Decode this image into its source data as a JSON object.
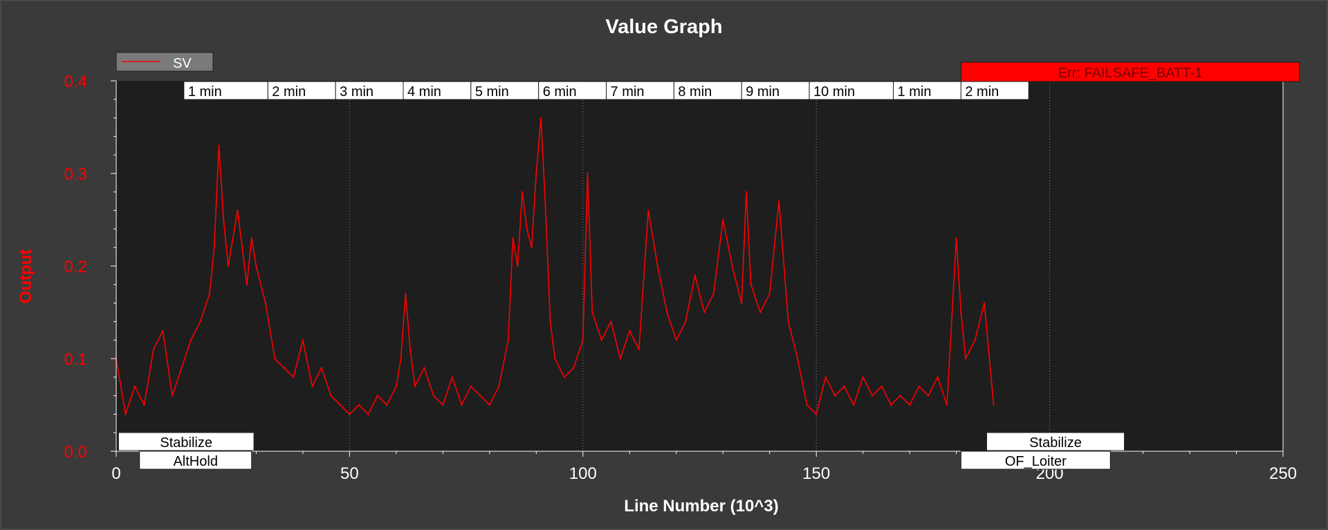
{
  "chart_data": {
    "type": "line",
    "title": "Value Graph",
    "xlabel": "Line Number (10^3)",
    "ylabel": "Output",
    "xlim": [
      0,
      250
    ],
    "ylim": [
      0,
      0.4
    ],
    "x_ticks": [
      "0",
      "50",
      "100",
      "150",
      "200",
      "250"
    ],
    "y_ticks": [
      "0.0",
      "0.1",
      "0.2",
      "0.3",
      "0.4"
    ],
    "legend": {
      "position": "top-left",
      "entries": [
        "SV"
      ]
    },
    "grid": false,
    "series": [
      {
        "name": "SV",
        "color": "#ff0000",
        "x": [
          0,
          2,
          4,
          6,
          8,
          10,
          12,
          14,
          16,
          18,
          20,
          21,
          22,
          23,
          24,
          26,
          28,
          29,
          30,
          32,
          34,
          36,
          38,
          40,
          42,
          44,
          46,
          48,
          50,
          52,
          54,
          56,
          58,
          60,
          61,
          62,
          63,
          64,
          66,
          68,
          70,
          72,
          74,
          76,
          78,
          80,
          82,
          84,
          85,
          86,
          87,
          88,
          89,
          90,
          91,
          92,
          93,
          94,
          96,
          98,
          100,
          101,
          102,
          104,
          106,
          108,
          110,
          112,
          114,
          116,
          118,
          120,
          122,
          124,
          126,
          128,
          130,
          132,
          134,
          135,
          136,
          138,
          140,
          142,
          144,
          146,
          148,
          150,
          152,
          154,
          156,
          158,
          160,
          162,
          164,
          166,
          168,
          170,
          172,
          174,
          176,
          178,
          180,
          181,
          182,
          184,
          186,
          188
        ],
        "y": [
          0.1,
          0.04,
          0.07,
          0.05,
          0.11,
          0.13,
          0.06,
          0.09,
          0.12,
          0.14,
          0.17,
          0.22,
          0.33,
          0.25,
          0.2,
          0.26,
          0.18,
          0.23,
          0.2,
          0.16,
          0.1,
          0.09,
          0.08,
          0.12,
          0.07,
          0.09,
          0.06,
          0.05,
          0.04,
          0.05,
          0.04,
          0.06,
          0.05,
          0.07,
          0.1,
          0.17,
          0.11,
          0.07,
          0.09,
          0.06,
          0.05,
          0.08,
          0.05,
          0.07,
          0.06,
          0.05,
          0.07,
          0.12,
          0.23,
          0.2,
          0.28,
          0.24,
          0.22,
          0.3,
          0.36,
          0.26,
          0.14,
          0.1,
          0.08,
          0.09,
          0.12,
          0.3,
          0.15,
          0.12,
          0.14,
          0.1,
          0.13,
          0.11,
          0.26,
          0.2,
          0.15,
          0.12,
          0.14,
          0.19,
          0.15,
          0.17,
          0.25,
          0.2,
          0.16,
          0.28,
          0.18,
          0.15,
          0.17,
          0.27,
          0.14,
          0.1,
          0.05,
          0.04,
          0.08,
          0.06,
          0.07,
          0.05,
          0.08,
          0.06,
          0.07,
          0.05,
          0.06,
          0.05,
          0.07,
          0.06,
          0.08,
          0.05,
          0.23,
          0.15,
          0.1,
          0.12,
          0.16,
          0.05
        ]
      }
    ],
    "time_markers": [
      {
        "label": "1 min",
        "x": 14.5
      },
      {
        "label": "2 min",
        "x": 32.5
      },
      {
        "label": "3 min",
        "x": 47.0
      },
      {
        "label": "4 min",
        "x": 61.5
      },
      {
        "label": "5 min",
        "x": 76.0
      },
      {
        "label": "6 min",
        "x": 90.5
      },
      {
        "label": "7 min",
        "x": 105.0
      },
      {
        "label": "8 min",
        "x": 119.5
      },
      {
        "label": "9 min",
        "x": 134.0
      },
      {
        "label": "10 min",
        "x": 148.5
      },
      {
        "label": "1 min",
        "x": 166.5
      },
      {
        "label": "2 min",
        "x": 181.0
      }
    ],
    "time_markers_end": 195.5,
    "vertical_lines": [
      50,
      100,
      150,
      200
    ],
    "error_event": {
      "label": "Err: FAILSAFE_BATT-1",
      "x_start": 181,
      "x_end": 253.5,
      "color": "#ff0000"
    },
    "mode_labels": [
      {
        "label": "Stabilize",
        "x_start": 0.5,
        "x_end": 29.5,
        "row": 0
      },
      {
        "label": "AltHold",
        "x_start": 5,
        "x_end": 29,
        "row": 1
      },
      {
        "label": "Stabilize",
        "x_start": 186.5,
        "x_end": 216,
        "row": 0
      },
      {
        "label": "OF_Loiter",
        "x_start": 181,
        "x_end": 213,
        "row": 1
      }
    ]
  }
}
